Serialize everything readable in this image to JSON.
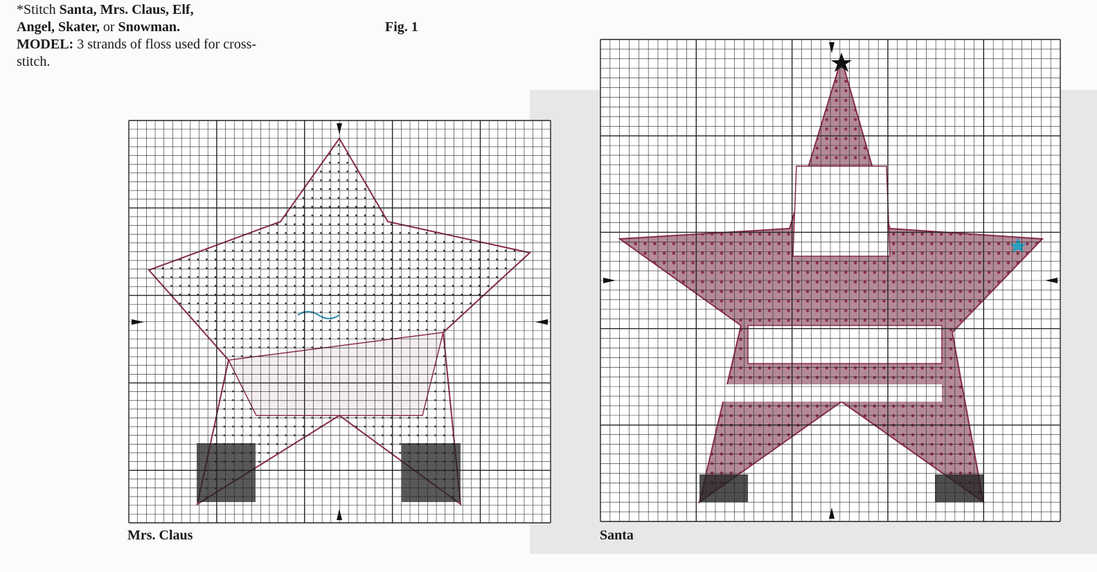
{
  "note": {
    "prefix": "*Stitch ",
    "names1": "Santa, Mrs. Claus, Elf,",
    "names2": "Angel, Skater,",
    "or": " or ",
    "names3": "Snowman.",
    "model_label": "MODEL:",
    "model_text": " 3 strands of floss used for cross-stitch."
  },
  "figure_label": "Fig. 1",
  "charts": [
    {
      "caption": "Mrs. Claus",
      "outline_color": "#8b2d4a",
      "accent_color": "#9c3a5a",
      "highlight_color": "#2a8fb0"
    },
    {
      "caption": "Santa",
      "outline_color": "#8b2d4a",
      "accent_color": "#9c3a5a",
      "highlight_color": "#2a9fc0"
    }
  ]
}
